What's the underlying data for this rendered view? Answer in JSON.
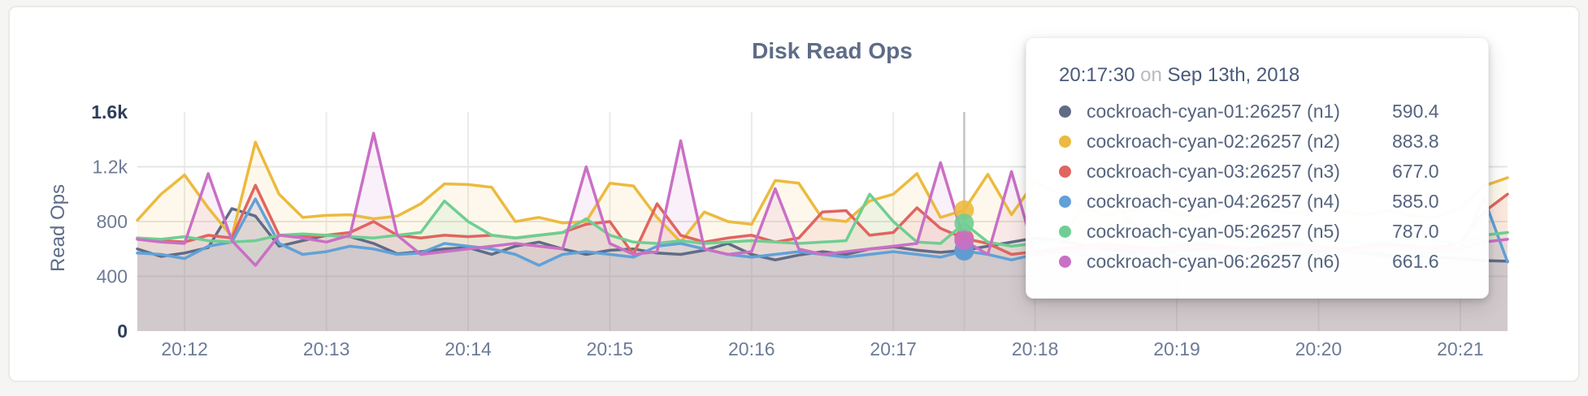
{
  "chart_data": {
    "type": "area",
    "title": "Disk Read Ops",
    "ylabel": "Read Ops",
    "xlabel": "",
    "grid": true,
    "ylim": [
      0,
      1600
    ],
    "xlim_seconds": [
      700,
      1280
    ],
    "x_step_seconds": 10,
    "x_ticks": [
      {
        "label": "20:12",
        "seconds": 720
      },
      {
        "label": "20:13",
        "seconds": 780
      },
      {
        "label": "20:14",
        "seconds": 840
      },
      {
        "label": "20:15",
        "seconds": 900
      },
      {
        "label": "20:16",
        "seconds": 960
      },
      {
        "label": "20:17",
        "seconds": 1020
      },
      {
        "label": "20:18",
        "seconds": 1080
      },
      {
        "label": "20:19",
        "seconds": 1140
      },
      {
        "label": "20:20",
        "seconds": 1200
      },
      {
        "label": "20:21",
        "seconds": 1260
      }
    ],
    "y_ticks": [
      {
        "value": 0,
        "label": "0",
        "bold": true,
        "gridline": false
      },
      {
        "value": 400,
        "label": "400",
        "bold": false,
        "gridline": true
      },
      {
        "value": 800,
        "label": "800",
        "bold": false,
        "gridline": true
      },
      {
        "value": 1200,
        "label": "1.2k",
        "bold": false,
        "gridline": true
      },
      {
        "value": 1600,
        "label": "1.6k",
        "bold": true,
        "gridline": false
      }
    ],
    "series": [
      {
        "name": "cockroach-cyan-01:26257 (n1)",
        "id": "n1",
        "color": "#5f6c87",
        "values": [
          600,
          545,
          570,
          610,
          895,
          840,
          620,
          660,
          700,
          690,
          640,
          565,
          580,
          600,
          610,
          560,
          620,
          650,
          600,
          560,
          590,
          600,
          570,
          560,
          590,
          640,
          560,
          520,
          555,
          580,
          560,
          600,
          615,
          590,
          575,
          590.4,
          620,
          650,
          680,
          660,
          630,
          600,
          580,
          570,
          590,
          600,
          610,
          590,
          570,
          560,
          580,
          590,
          570,
          555,
          545,
          540,
          530,
          515,
          510
        ]
      },
      {
        "name": "cockroach-cyan-02:26257 (n2)",
        "id": "n2",
        "color": "#ecba3f",
        "values": [
          810,
          1000,
          1140,
          900,
          690,
          1380,
          1000,
          830,
          845,
          850,
          820,
          840,
          930,
          1075,
          1070,
          1050,
          800,
          830,
          790,
          800,
          1080,
          1060,
          830,
          650,
          870,
          800,
          780,
          1100,
          1080,
          820,
          800,
          950,
          1000,
          1150,
          830,
          883.8,
          1145,
          850,
          1090,
          1000,
          900,
          850,
          880,
          900,
          860,
          830,
          900,
          950,
          880,
          860,
          900,
          870,
          850,
          880,
          840,
          830,
          900,
          1060,
          1120
        ]
      },
      {
        "name": "cockroach-cyan-03:26257 (n3)",
        "id": "n3",
        "color": "#e0655f",
        "values": [
          680,
          660,
          650,
          700,
          680,
          1065,
          700,
          690,
          700,
          720,
          800,
          700,
          680,
          700,
          690,
          700,
          680,
          700,
          720,
          780,
          800,
          560,
          930,
          700,
          650,
          680,
          700,
          650,
          680,
          870,
          880,
          700,
          720,
          900,
          750,
          677,
          640,
          560,
          580,
          600,
          620,
          640,
          620,
          600,
          620,
          640,
          620,
          600,
          620,
          640,
          620,
          600,
          620,
          640,
          620,
          600,
          650,
          870,
          1000
        ]
      },
      {
        "name": "cockroach-cyan-04:26257 (n4)",
        "id": "n4",
        "color": "#61a1d8",
        "values": [
          570,
          560,
          530,
          620,
          650,
          965,
          640,
          560,
          580,
          620,
          600,
          560,
          570,
          640,
          620,
          600,
          560,
          480,
          560,
          580,
          560,
          540,
          620,
          640,
          600,
          560,
          540,
          560,
          580,
          560,
          540,
          560,
          580,
          560,
          540,
          585,
          560,
          520,
          560,
          580,
          560,
          540,
          560,
          580,
          560,
          540,
          560,
          580,
          560,
          540,
          560,
          580,
          560,
          540,
          560,
          580,
          600,
          970,
          505
        ]
      },
      {
        "name": "cockroach-cyan-05:26257 (n5)",
        "id": "n5",
        "color": "#6fce93",
        "values": [
          680,
          670,
          690,
          660,
          650,
          660,
          700,
          710,
          700,
          690,
          680,
          700,
          720,
          950,
          800,
          700,
          680,
          700,
          720,
          820,
          700,
          650,
          640,
          660,
          640,
          650,
          660,
          650,
          640,
          650,
          660,
          1000,
          800,
          650,
          640,
          787,
          650,
          620,
          640,
          660,
          900,
          1000,
          800,
          660,
          640,
          660,
          680,
          660,
          640,
          660,
          680,
          660,
          640,
          660,
          680,
          660,
          640,
          700,
          720
        ]
      },
      {
        "name": "cockroach-cyan-06:26257 (n6)",
        "id": "n6",
        "color": "#ca6fc6",
        "values": [
          670,
          650,
          640,
          1150,
          660,
          480,
          700,
          680,
          650,
          700,
          1445,
          700,
          560,
          580,
          600,
          620,
          640,
          620,
          600,
          1200,
          640,
          560,
          580,
          1390,
          600,
          560,
          580,
          1040,
          600,
          560,
          580,
          600,
          620,
          640,
          1230,
          661.6,
          560,
          1165,
          560,
          580,
          600,
          620,
          600,
          580,
          600,
          620,
          600,
          580,
          600,
          620,
          600,
          580,
          600,
          620,
          600,
          620,
          600,
          650,
          670
        ]
      }
    ]
  },
  "hover": {
    "time_seconds": 1050,
    "crosshair_color": "#c4c4c4",
    "dot_radius": 12
  },
  "tooltip": {
    "time": "20:17:30",
    "connector": "on",
    "date": "Sep 13th, 2018",
    "rows": [
      {
        "name": "cockroach-cyan-01:26257 (n1)",
        "value": "590.4",
        "color": "#5f6c87"
      },
      {
        "name": "cockroach-cyan-02:26257 (n2)",
        "value": "883.8",
        "color": "#ecba3f"
      },
      {
        "name": "cockroach-cyan-03:26257 (n3)",
        "value": "677.0",
        "color": "#e0655f"
      },
      {
        "name": "cockroach-cyan-04:26257 (n4)",
        "value": "585.0",
        "color": "#61a1d8"
      },
      {
        "name": "cockroach-cyan-05:26257 (n5)",
        "value": "787.0",
        "color": "#6fce93"
      },
      {
        "name": "cockroach-cyan-06:26257 (n6)",
        "value": "661.6",
        "color": "#ca6fc6"
      }
    ]
  }
}
